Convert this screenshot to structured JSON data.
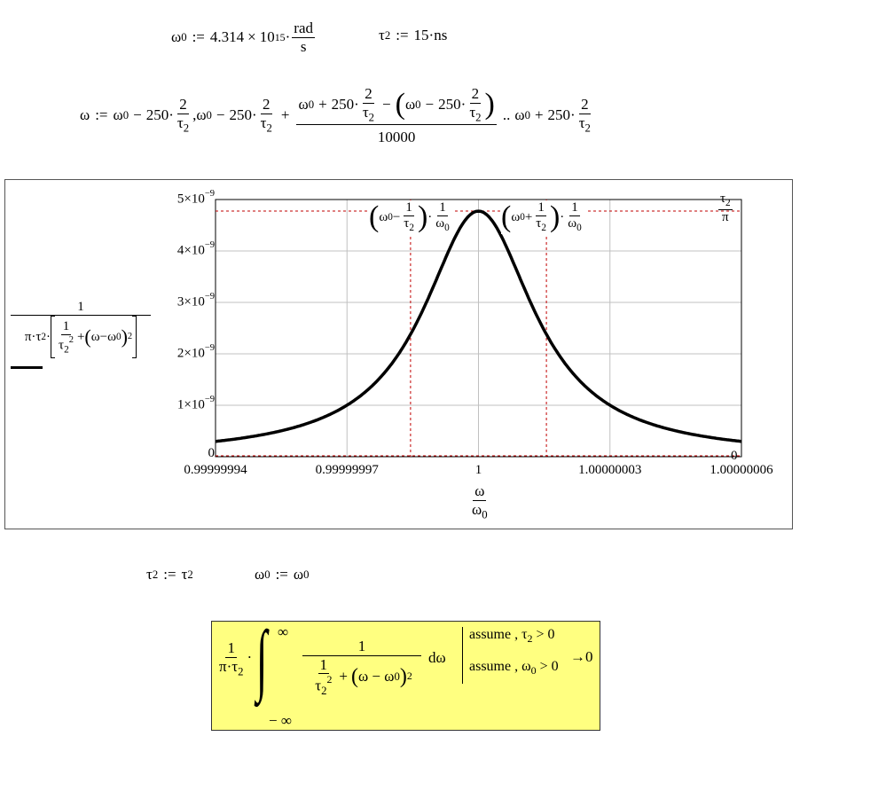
{
  "definitions": {
    "omega0": {
      "lhs": "ω",
      "sub": "0",
      "assign": ":=",
      "mantissa": "4.314",
      "times": "×",
      "base": "10",
      "exp": "15",
      "dot": "·",
      "unit_num": "rad",
      "unit_den": "s"
    },
    "tau2": {
      "lhs": "τ",
      "sub": "2",
      "assign": ":=",
      "value": "15",
      "dot": "·",
      "unit": "ns"
    }
  },
  "range_def": {
    "lhs": "ω",
    "assign": ":=",
    "start": "ω₀ − 250·2/τ₂",
    "parts": {
      "w": "ω",
      "z": "0",
      "minus": "−",
      "plus": "+",
      "n250": "250",
      "dot": "·",
      "two": "2",
      "tau": "τ",
      "two_sub": "2",
      "comma": ",",
      "n10000": "10000",
      "dotdot": ".."
    }
  },
  "plot": {
    "y_expr": {
      "one": "1",
      "pi_tau": "π·τ",
      "sub2": "2",
      "dot": "·",
      "inner_one": "1",
      "tau": "τ",
      "tau_sub": "2",
      "tau_sup": "2",
      "plus": "+",
      "w": "ω",
      "minus": "−",
      "w0": "ω",
      "w0_sub": "0",
      "sq": "2"
    },
    "x_expr": {
      "num": "ω",
      "den": "ω",
      "den_sub": "0"
    },
    "markers": {
      "left": {
        "w": "ω",
        "sub": "0",
        "op": "−",
        "one": "1",
        "tau": "τ",
        "tau_sub": "2",
        "dot": "·",
        "rone": "1",
        "rw": "ω",
        "rsub": "0"
      },
      "right": {
        "w": "ω",
        "sub": "0",
        "op": "+",
        "one": "1",
        "tau": "τ",
        "tau_sub": "2",
        "dot": "·",
        "rone": "1",
        "rw": "ω",
        "rsub": "0"
      },
      "top_num": "τ",
      "top_num_sub": "2",
      "top_den": "π",
      "bottom": "0"
    },
    "trace_color": "#000000",
    "marker_color": "#c00000",
    "grid_color": "#c0c0c0"
  },
  "chart_data": {
    "type": "line",
    "function": "1/(π·τ2·[1/τ2² + (ω−ω0)²]) vs ω/ω0",
    "parameters": {
      "tau2_s": 1.5e-08,
      "omega0_rad_per_s": 4314000000000000.0
    },
    "xlim": [
      0.99999994,
      1.00000006
    ],
    "ylim": [
      0,
      5e-09
    ],
    "x_ticks": [
      "0.99999994",
      "0.99999997",
      "1",
      "1.00000003",
      "1.00000006"
    ],
    "y_ticks": [
      {
        "m": "0",
        "e": ""
      },
      {
        "m": "1×10",
        "e": "−9"
      },
      {
        "m": "2×10",
        "e": "−9"
      },
      {
        "m": "3×10",
        "e": "−9"
      },
      {
        "m": "4×10",
        "e": "−9"
      },
      {
        "m": "5×10",
        "e": "−9"
      }
    ],
    "peak_y": 4.775e-09,
    "marker_x": [
      0.9999999845,
      1.0000000155
    ],
    "grid": true
  },
  "reassign": {
    "t": "τ",
    "tsub": "2",
    "assign": ":=",
    "w": "ω",
    "wsub": "0"
  },
  "symbolic": {
    "one": "1",
    "pi_tau": "π·τ",
    "sub2": "2",
    "dot": "·",
    "integral": "∫",
    "upper": "∞",
    "lower": "− ∞",
    "inner_one": "1",
    "tau": "τ",
    "tau_sub": "2",
    "tau_sup": "2",
    "plus": "+",
    "paren_expr": "ω − ω",
    "w0_sub": "0",
    "sq": "2",
    "dw": "dω",
    "assume1": "assume , τ",
    "assume1_sub": "2",
    "assume1_rest": " >  0",
    "assume2": "assume , ω",
    "assume2_sub": "0",
    "assume2_rest": " >  0",
    "arrow": "→",
    "result": "0",
    "bg_color": "#ffff80"
  }
}
